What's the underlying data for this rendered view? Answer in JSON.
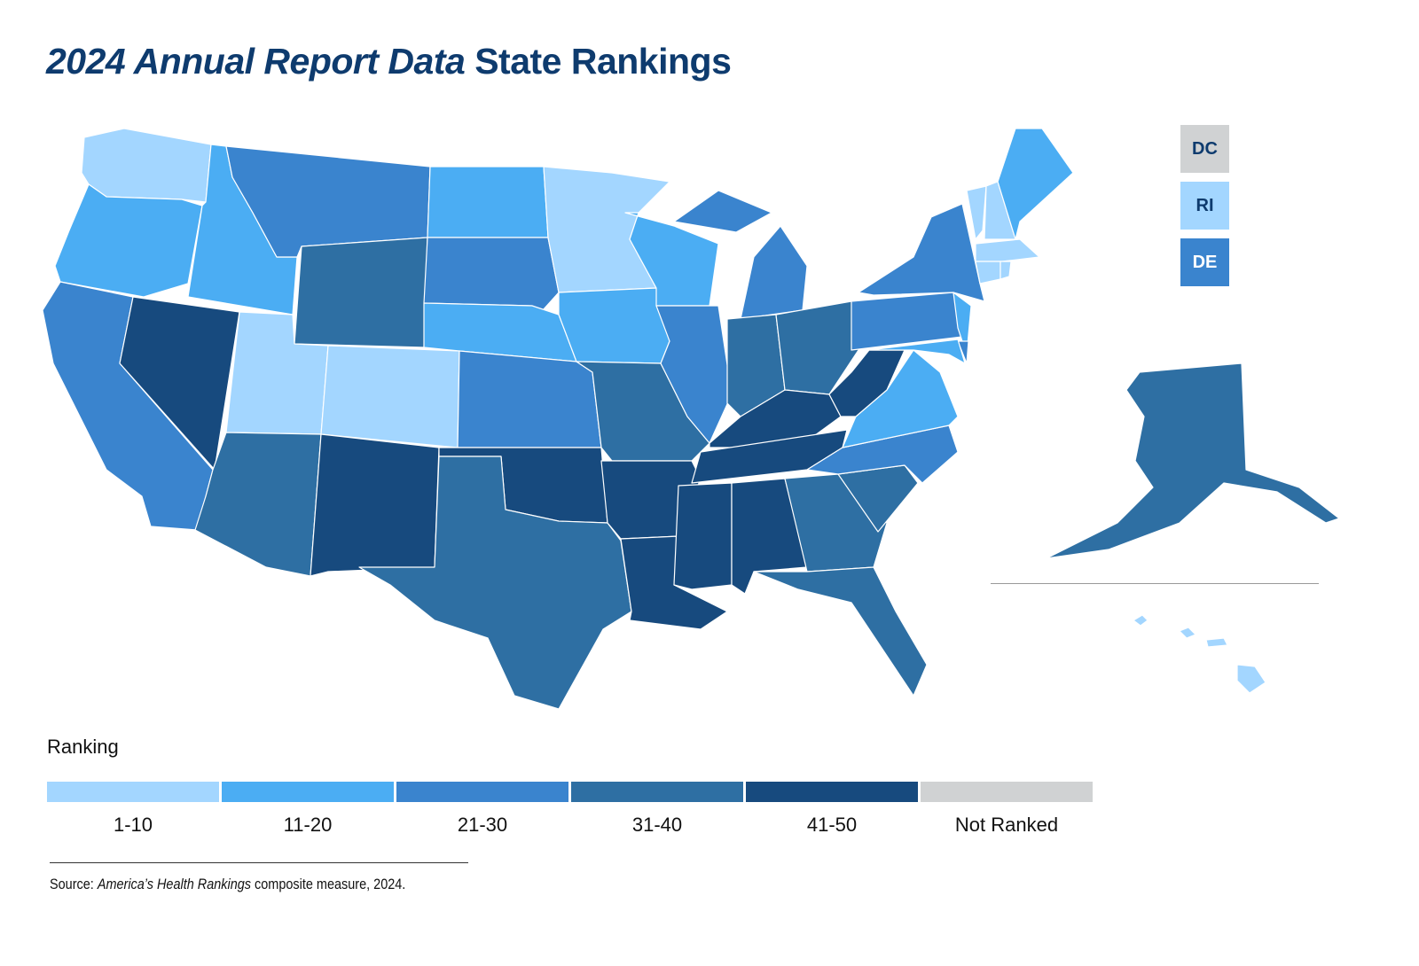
{
  "title": {
    "italic_part": "2024 Annual Report Data",
    "plain_part": "State Rankings"
  },
  "colors": {
    "title": "#0E3B6E",
    "tiers": [
      "#A3D6FF",
      "#4BADF3",
      "#3A84CE",
      "#2E6FA3",
      "#174A7E",
      "#D0D2D3"
    ]
  },
  "legend": {
    "title": "Ranking",
    "items": [
      {
        "label": "1-10",
        "tier": 0
      },
      {
        "label": "11-20",
        "tier": 1
      },
      {
        "label": "21-30",
        "tier": 2
      },
      {
        "label": "31-40",
        "tier": 3
      },
      {
        "label": "41-50",
        "tier": 4
      },
      {
        "label": "Not Ranked",
        "tier": 5
      }
    ]
  },
  "insets": [
    {
      "label": "DC",
      "tier": 5
    },
    {
      "label": "RI",
      "tier": 0
    },
    {
      "label": "DE",
      "tier": 2
    }
  ],
  "states": {
    "WA": 0,
    "UT": 0,
    "CO": 0,
    "MN": 0,
    "VT": 0,
    "NH": 0,
    "MA": 0,
    "CT": 0,
    "RI": 0,
    "HI": 0,
    "OR": 1,
    "ID": 1,
    "ND": 1,
    "NE": 1,
    "WI": 1,
    "IA": 1,
    "ME": 1,
    "NJ": 1,
    "VA": 1,
    "MD": 1,
    "CA": 2,
    "MT": 2,
    "SD": 2,
    "KS": 2,
    "IL": 2,
    "MI": 2,
    "NY": 2,
    "PA": 2,
    "NC": 2,
    "DE": 2,
    "WY": 3,
    "AZ": 3,
    "TX": 3,
    "MO": 3,
    "IN": 3,
    "OH": 3,
    "GA": 3,
    "SC": 3,
    "FL": 3,
    "AK": 3,
    "NV": 4,
    "NM": 4,
    "OK": 4,
    "AR": 4,
    "LA": 4,
    "MS": 4,
    "AL": 4,
    "TN": 4,
    "KY": 4,
    "WV": 4
  },
  "source": {
    "prefix": "Source: ",
    "publication": "America’s Health Rankings",
    "suffix": " composite measure, 2024."
  }
}
